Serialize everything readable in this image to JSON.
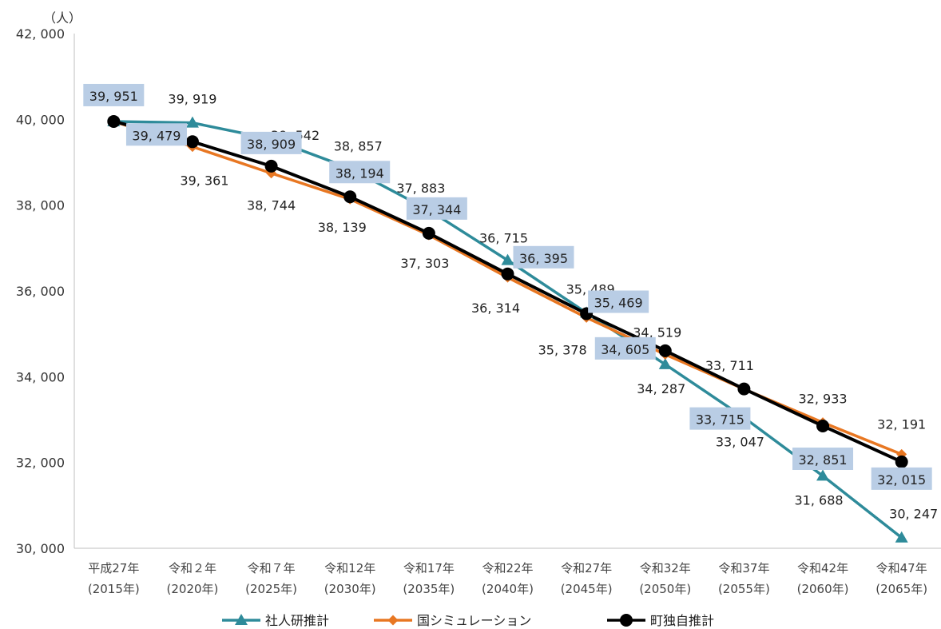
{
  "chart_data": {
    "type": "line",
    "unit_label": "（人）",
    "categories": [
      [
        "平成27年",
        "(2015年)"
      ],
      [
        "令和２年",
        "(2020年)"
      ],
      [
        "令和７年",
        "(2025年)"
      ],
      [
        "令和12年",
        "(2030年)"
      ],
      [
        "令和17年",
        "(2035年)"
      ],
      [
        "令和22年",
        "(2040年)"
      ],
      [
        "令和27年",
        "(2045年)"
      ],
      [
        "令和32年",
        "(2050年)"
      ],
      [
        "令和37年",
        "(2055年)"
      ],
      [
        "令和42年",
        "(2060年)"
      ],
      [
        "令和47年",
        "(2065年)"
      ]
    ],
    "ylim": [
      30000,
      42000
    ],
    "yticks": [
      30000,
      32000,
      34000,
      36000,
      38000,
      40000,
      42000
    ],
    "ytick_labels": [
      "30, 000",
      "32, 000",
      "34, 000",
      "36, 000",
      "38, 000",
      "40, 000",
      "42, 000"
    ],
    "grid": false,
    "legend_position": "bottom",
    "series": [
      {
        "name": "社人研推計",
        "color": "#2e8b9a",
        "marker": "triangle",
        "values": [
          39951,
          39919,
          39542,
          38857,
          37883,
          36715,
          35489,
          34287,
          33047,
          31688,
          30247
        ],
        "labels": [
          "",
          "39, 919",
          "39, 542",
          "38, 857",
          "37, 883",
          "36, 715",
          "35, 489",
          "34, 287",
          "33, 047",
          "31, 688",
          "30, 247"
        ]
      },
      {
        "name": "国シミュレーション",
        "color": "#e87722",
        "marker": "diamond",
        "values": [
          39951,
          39361,
          38744,
          38139,
          37303,
          36314,
          35378,
          34519,
          33711,
          32933,
          32191
        ],
        "labels": [
          "",
          "39, 361",
          "38, 744",
          "38, 139",
          "37, 303",
          "36, 314",
          "35, 378",
          "34, 519",
          "33, 711",
          "32, 933",
          "32, 191"
        ]
      },
      {
        "name": "町独自推計",
        "color": "#000000",
        "marker": "circle",
        "values": [
          39951,
          39479,
          38909,
          38194,
          37344,
          36395,
          35469,
          34605,
          33715,
          32851,
          32015
        ],
        "labels": [
          "39, 951",
          "39, 479",
          "38, 909",
          "38, 194",
          "37, 344",
          "36, 395",
          "35, 469",
          "34, 605",
          "33, 715",
          "32, 851",
          "32, 015"
        ]
      }
    ]
  }
}
